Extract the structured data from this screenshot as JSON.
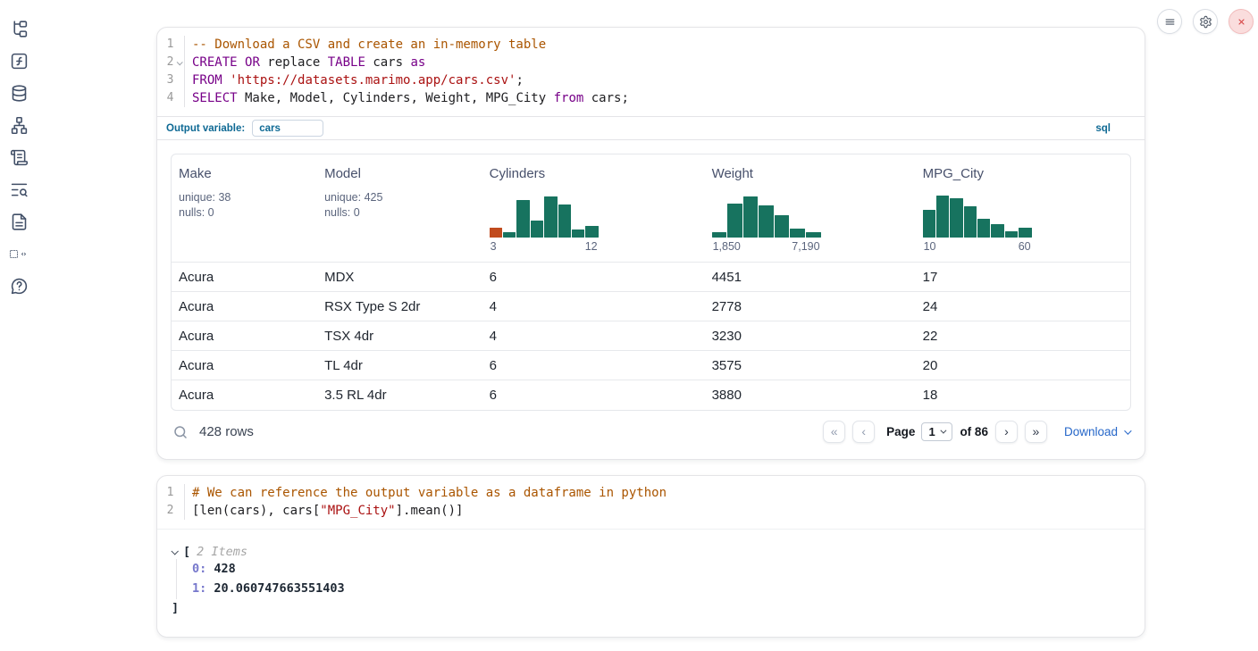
{
  "colors": {
    "hist_green": "#17735f",
    "hist_orange": "#c14b1e",
    "accent_blue": "#0e6994",
    "link_blue": "#2667c9",
    "close_red": "#d64545",
    "keyword": "#770088",
    "string": "#aa1111",
    "comment": "#aa5500",
    "index_purple": "#7778cc"
  },
  "topbar": {
    "buttons": [
      {
        "icon": "menu-icon"
      },
      {
        "icon": "gear-icon"
      },
      {
        "icon": "close-icon",
        "variant": "danger"
      }
    ]
  },
  "sidebar": {
    "items": [
      {
        "icon": "file-tree-icon"
      },
      {
        "icon": "function-square-icon"
      },
      {
        "icon": "database-icon"
      },
      {
        "icon": "network-icon"
      },
      {
        "icon": "scroll-icon"
      },
      {
        "icon": "text-search-icon"
      },
      {
        "icon": "file-text-icon"
      },
      {
        "icon": "code-snippet-icon"
      },
      {
        "icon": "help-bubble-icon"
      }
    ]
  },
  "sql_cell": {
    "lines": [
      {
        "num": "1",
        "tokens": [
          {
            "t": "-- Download a CSV and create an in-memory table",
            "c": "comment"
          }
        ]
      },
      {
        "num": "2",
        "fold": true,
        "tokens": [
          {
            "t": "CREATE",
            "c": "kw"
          },
          {
            "t": " "
          },
          {
            "t": "OR",
            "c": "kw"
          },
          {
            "t": " replace "
          },
          {
            "t": "TABLE",
            "c": "kw"
          },
          {
            "t": " cars "
          },
          {
            "t": "as",
            "c": "kw"
          }
        ]
      },
      {
        "num": "3",
        "tokens": [
          {
            "t": "FROM",
            "c": "kw"
          },
          {
            "t": " "
          },
          {
            "t": "'https://datasets.marimo.app/cars.csv'",
            "c": "str"
          },
          {
            "t": ";"
          }
        ]
      },
      {
        "num": "4",
        "tokens": [
          {
            "t": "SELECT",
            "c": "kw"
          },
          {
            "t": " Make, Model, Cylinders, Weight, MPG_City "
          },
          {
            "t": "from",
            "c": "kw"
          },
          {
            "t": " cars;"
          }
        ]
      }
    ],
    "output_variable_label": "Output variable:",
    "output_variable_value": "cars",
    "language_badge": "sql"
  },
  "table": {
    "columns": [
      {
        "label": "Make",
        "stats": [
          "unique: 38",
          "nulls: 0"
        ]
      },
      {
        "label": "Model",
        "stats": [
          "unique: 425",
          "nulls: 0"
        ]
      },
      {
        "label": "Cylinders",
        "hist": {
          "min_label": "3",
          "max_label": "12",
          "bars": [
            {
              "v": 0.22,
              "c": "orange"
            },
            {
              "v": 0.13
            },
            {
              "v": 0.85
            },
            {
              "v": 0.38
            },
            {
              "v": 0.93
            },
            {
              "v": 0.75
            },
            {
              "v": 0.18
            },
            {
              "v": 0.26
            }
          ]
        }
      },
      {
        "label": "Weight",
        "hist": {
          "min_label": "1,850",
          "max_label": "7,190",
          "bars": [
            {
              "v": 0.12
            },
            {
              "v": 0.76
            },
            {
              "v": 0.92
            },
            {
              "v": 0.73
            },
            {
              "v": 0.5
            },
            {
              "v": 0.2
            },
            {
              "v": 0.13
            }
          ]
        }
      },
      {
        "label": "MPG_City",
        "hist": {
          "min_label": "10",
          "max_label": "60",
          "bars": [
            {
              "v": 0.62
            },
            {
              "v": 0.95
            },
            {
              "v": 0.88
            },
            {
              "v": 0.7
            },
            {
              "v": 0.42
            },
            {
              "v": 0.3
            },
            {
              "v": 0.14
            },
            {
              "v": 0.22
            }
          ]
        }
      }
    ],
    "rows": [
      [
        "Acura",
        "MDX",
        "6",
        "4451",
        "17"
      ],
      [
        "Acura",
        "RSX Type S 2dr",
        "4",
        "2778",
        "24"
      ],
      [
        "Acura",
        "TSX 4dr",
        "4",
        "3230",
        "22"
      ],
      [
        "Acura",
        "TL 4dr",
        "6",
        "3575",
        "20"
      ],
      [
        "Acura",
        "3.5 RL 4dr",
        "6",
        "3880",
        "18"
      ]
    ],
    "footer": {
      "row_count": "428 rows",
      "page_label": "Page",
      "page_value": "1",
      "total_label": "of 86",
      "download_label": "Download",
      "pager_buttons": [
        {
          "icon": "chevrons-left-icon",
          "disabled": true
        },
        {
          "icon": "chevron-left-icon",
          "disabled": true
        },
        {
          "icon": "chevron-right-icon",
          "disabled": false
        },
        {
          "icon": "chevrons-right-icon",
          "disabled": false
        }
      ]
    }
  },
  "python_cell": {
    "lines": [
      {
        "num": "1",
        "tokens": [
          {
            "t": "# We can reference the output variable as a dataframe in python",
            "c": "comment"
          }
        ]
      },
      {
        "num": "2",
        "tokens": [
          {
            "t": "[len(cars), cars["
          },
          {
            "t": "\"MPG_City\"",
            "c": "str"
          },
          {
            "t": "].mean()]"
          }
        ]
      }
    ]
  },
  "python_output": {
    "open_bracket": "[",
    "items_label": "2 Items",
    "entries": [
      {
        "key": "0: ",
        "value": "428"
      },
      {
        "key": "1: ",
        "value": "20.060747663551403"
      }
    ],
    "close_bracket": "]"
  }
}
